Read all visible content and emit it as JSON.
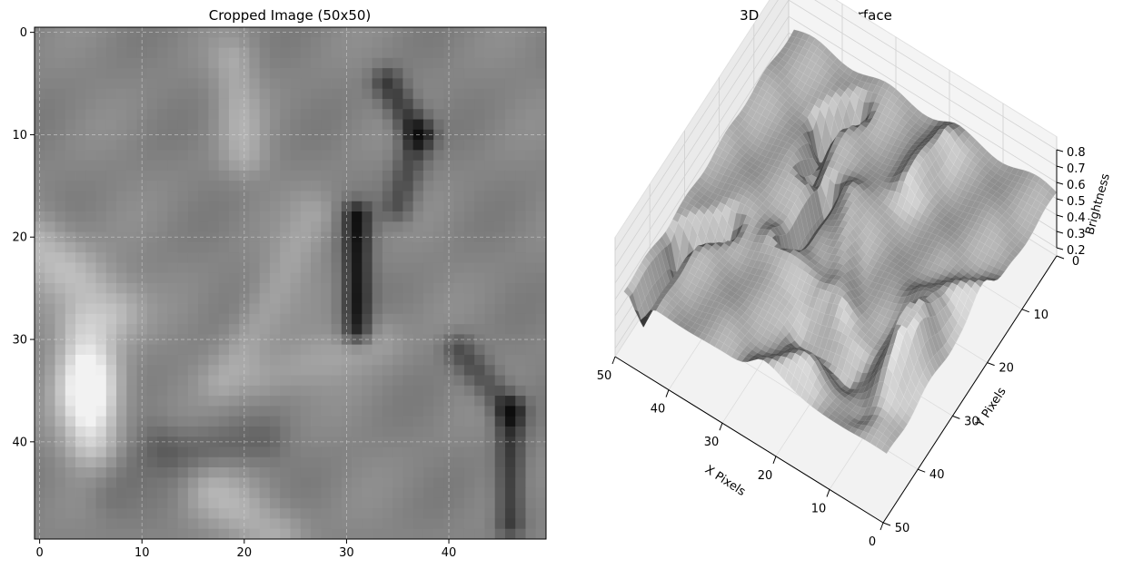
{
  "chart_data": [
    {
      "type": "heatmap",
      "title": "Cropped Image (50x50)",
      "colormap": "gray",
      "size": [
        50,
        50
      ],
      "xlim": [
        0,
        49
      ],
      "ylim": [
        49,
        0
      ],
      "xticks": [
        "0",
        "10",
        "20",
        "30",
        "40"
      ],
      "yticks": [
        "0",
        "10",
        "20",
        "30",
        "40"
      ],
      "grid": true,
      "features": [
        {
          "label": "dark vertical stroke",
          "x": 31,
          "y_range": [
            17,
            29
          ],
          "brightness": 0.08
        },
        {
          "label": "dark curved stroke top",
          "x_range": [
            33,
            38
          ],
          "y_range": [
            4,
            18
          ],
          "brightness": 0.12
        },
        {
          "label": "dark diagonal stroke lower right",
          "x_range": [
            41,
            47
          ],
          "y_range": [
            30,
            48
          ],
          "brightness": 0.15
        },
        {
          "label": "bright region left",
          "x_range": [
            1,
            8
          ],
          "y_range": [
            20,
            42
          ],
          "brightness": 0.9
        }
      ]
    },
    {
      "type": "surface",
      "title": "3D Brightness Surface",
      "xlabel": "X Pixels",
      "ylabel": "Y Pixels",
      "zlabel": "Brightness",
      "xticks": [
        "0",
        "10",
        "20",
        "30",
        "40",
        "50"
      ],
      "yticks": [
        "0",
        "10",
        "20",
        "30",
        "40",
        "50"
      ],
      "zticks": [
        "0.2",
        "0.3",
        "0.4",
        "0.5",
        "0.6",
        "0.7",
        "0.8"
      ],
      "xlim": [
        0,
        50
      ],
      "ylim": [
        0,
        50
      ],
      "zlim": [
        0.15,
        0.85
      ]
    }
  ]
}
